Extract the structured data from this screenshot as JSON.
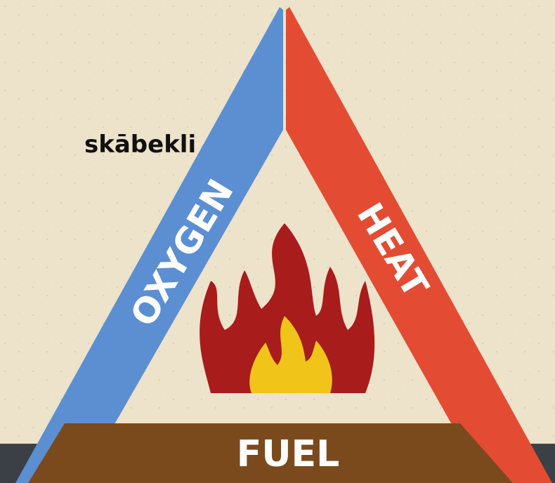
{
  "label": "skābekli",
  "triangle": {
    "left": "OXYGEN",
    "right": "HEAT",
    "base": "FUEL"
  }
}
